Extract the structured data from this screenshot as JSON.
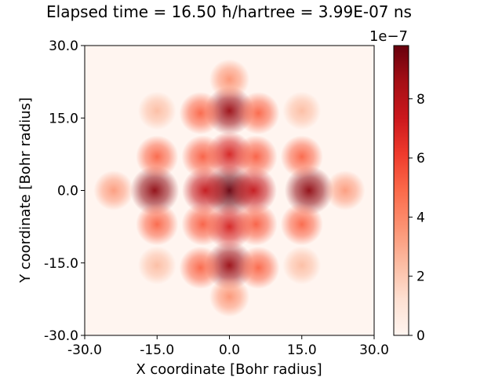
{
  "figure": {
    "title": "Elapsed time = 16.50 ħ/hartree = 3.99E-07 ns"
  },
  "chart_data": {
    "type": "heatmap",
    "title": "Elapsed time = 16.50 ħ/hartree = 3.99E-07 ns",
    "xlabel": "X coordinate [Bohr radius]",
    "ylabel": "Y coordinate [Bohr radius]",
    "xlim": [
      -30.0,
      30.0
    ],
    "ylim": [
      -30.0,
      30.0
    ],
    "x_ticks": [
      "-30.0",
      "-15.0",
      "0.0",
      "15.0",
      "30.0"
    ],
    "y_ticks": [
      "-30.0",
      "-15.0",
      "0.0",
      "15.0",
      "30.0"
    ],
    "colormap": "Reds",
    "colorbar": {
      "scale_label": "1e−7",
      "ticks": [
        "0",
        "2",
        "4",
        "6",
        "8"
      ],
      "range": [
        0,
        9.8e-07
      ]
    },
    "grid": false,
    "intensity_peaks": [
      {
        "x": 0.0,
        "y": 0.0,
        "value": 9.8e-07
      },
      {
        "x": -15.5,
        "y": 0.0,
        "value": 9e-07
      },
      {
        "x": 16.5,
        "y": 0.0,
        "value": 9e-07
      },
      {
        "x": 0.0,
        "y": 16.5,
        "value": 8.8e-07
      },
      {
        "x": 0.0,
        "y": -15.5,
        "value": 8.8e-07
      },
      {
        "x": -5.0,
        "y": 0.0,
        "value": 7.6e-07
      },
      {
        "x": 5.0,
        "y": 0.0,
        "value": 7.6e-07
      },
      {
        "x": 0.0,
        "y": 7.5,
        "value": 7e-07
      },
      {
        "x": 0.0,
        "y": -7.5,
        "value": 7e-07
      },
      {
        "x": -5.5,
        "y": 7.0,
        "value": 5.2e-07
      },
      {
        "x": 5.5,
        "y": 7.0,
        "value": 5.2e-07
      },
      {
        "x": -5.5,
        "y": -7.0,
        "value": 5.2e-07
      },
      {
        "x": 5.5,
        "y": -7.0,
        "value": 5.2e-07
      },
      {
        "x": -15.0,
        "y": 7.0,
        "value": 5e-07
      },
      {
        "x": 15.0,
        "y": 7.0,
        "value": 5e-07
      },
      {
        "x": -15.0,
        "y": -7.0,
        "value": 5e-07
      },
      {
        "x": 15.0,
        "y": -7.0,
        "value": 5e-07
      },
      {
        "x": -6.0,
        "y": 16.0,
        "value": 5e-07
      },
      {
        "x": 6.0,
        "y": 16.0,
        "value": 5e-07
      },
      {
        "x": -6.0,
        "y": -16.0,
        "value": 5e-07
      },
      {
        "x": 6.0,
        "y": -16.0,
        "value": 5e-07
      },
      {
        "x": -15.0,
        "y": 16.5,
        "value": 2.4e-07
      },
      {
        "x": 15.0,
        "y": 16.5,
        "value": 2.4e-07
      },
      {
        "x": -15.0,
        "y": -15.5,
        "value": 2.4e-07
      },
      {
        "x": 15.0,
        "y": -15.5,
        "value": 2.4e-07
      },
      {
        "x": 0.0,
        "y": 23.0,
        "value": 3.6e-07
      },
      {
        "x": 0.0,
        "y": -22.0,
        "value": 3.6e-07
      },
      {
        "x": -24.0,
        "y": 0.0,
        "value": 3.4e-07
      },
      {
        "x": 24.0,
        "y": 0.0,
        "value": 3.4e-07
      }
    ]
  }
}
